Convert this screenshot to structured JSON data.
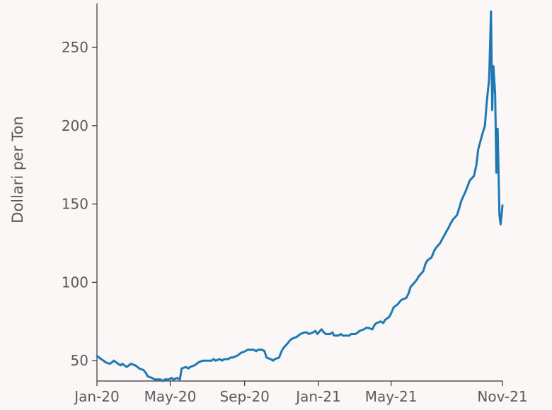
{
  "chart_data": {
    "type": "line",
    "title": "",
    "xlabel": "",
    "ylabel": "Dollari per Ton",
    "grid": false,
    "legend": "none",
    "colors": {
      "line": "#1f77b4",
      "background": "#fcf7f7",
      "axis": "#333333",
      "text": "#5a5a5a"
    },
    "xlim": [
      "2020-01-01",
      "2021-11-01"
    ],
    "ylim": [
      37,
      278
    ],
    "x_ticks": [
      {
        "value": "2020-01-01",
        "label": "Jan-20"
      },
      {
        "value": "2020-05-01",
        "label": "May-20"
      },
      {
        "value": "2020-09-01",
        "label": "Sep-20"
      },
      {
        "value": "2021-01-01",
        "label": "Jan-21"
      },
      {
        "value": "2021-05-01",
        "label": "May-21"
      },
      {
        "value": "2021-11-01",
        "label": "Nov-21"
      }
    ],
    "y_ticks": [
      {
        "value": 50,
        "label": "50"
      },
      {
        "value": 100,
        "label": "100"
      },
      {
        "value": 150,
        "label": "150"
      },
      {
        "value": 200,
        "label": "200"
      },
      {
        "value": 250,
        "label": "250"
      }
    ],
    "series": [
      {
        "x": [
          "2020-01-01",
          "2020-01-08",
          "2020-01-12",
          "2020-01-15",
          "2020-01-22",
          "2020-01-26",
          "2020-01-29",
          "2020-02-05",
          "2020-02-09",
          "2020-02-12",
          "2020-02-19",
          "2020-02-23",
          "2020-02-26",
          "2020-03-04",
          "2020-03-08",
          "2020-03-11",
          "2020-03-18",
          "2020-03-22",
          "2020-03-25",
          "2020-04-01",
          "2020-04-05",
          "2020-04-08",
          "2020-04-15",
          "2020-04-19",
          "2020-04-22",
          "2020-04-29",
          "2020-05-03",
          "2020-05-06",
          "2020-05-13",
          "2020-05-17",
          "2020-05-20",
          "2020-05-27",
          "2020-05-31",
          "2020-06-03",
          "2020-06-10",
          "2020-06-14",
          "2020-06-17",
          "2020-06-24",
          "2020-06-28",
          "2020-07-01",
          "2020-07-08",
          "2020-07-12",
          "2020-07-15",
          "2020-07-22",
          "2020-07-26",
          "2020-07-29",
          "2020-08-05",
          "2020-08-09",
          "2020-08-12",
          "2020-08-19",
          "2020-08-23",
          "2020-08-26",
          "2020-09-02",
          "2020-09-06",
          "2020-09-09",
          "2020-09-16",
          "2020-09-20",
          "2020-09-23",
          "2020-09-30",
          "2020-10-04",
          "2020-10-07",
          "2020-10-14",
          "2020-10-18",
          "2020-10-21",
          "2020-10-28",
          "2020-11-01",
          "2020-11-04",
          "2020-11-11",
          "2020-11-15",
          "2020-11-18",
          "2020-11-25",
          "2020-11-29",
          "2020-12-02",
          "2020-12-09",
          "2020-12-13",
          "2020-12-16",
          "2020-12-23",
          "2020-12-27",
          "2020-12-30",
          "2021-01-06",
          "2021-01-10",
          "2021-01-13",
          "2021-01-20",
          "2021-01-24",
          "2021-01-27",
          "2021-02-03",
          "2021-02-07",
          "2021-02-10",
          "2021-02-17",
          "2021-02-21",
          "2021-02-24",
          "2021-03-03",
          "2021-03-07",
          "2021-03-10",
          "2021-03-17",
          "2021-03-21",
          "2021-03-24",
          "2021-03-31",
          "2021-04-04",
          "2021-04-07",
          "2021-04-14",
          "2021-04-18",
          "2021-04-21",
          "2021-04-28",
          "2021-05-02",
          "2021-05-05",
          "2021-05-12",
          "2021-05-16",
          "2021-05-19",
          "2021-05-26",
          "2021-05-30",
          "2021-06-02",
          "2021-06-09",
          "2021-06-13",
          "2021-06-16",
          "2021-06-23",
          "2021-06-27",
          "2021-06-30",
          "2021-07-07",
          "2021-07-11",
          "2021-07-14",
          "2021-07-21",
          "2021-07-25",
          "2021-07-28",
          "2021-08-04",
          "2021-08-08",
          "2021-08-11",
          "2021-08-18",
          "2021-08-22",
          "2021-08-25",
          "2021-09-01",
          "2021-09-05",
          "2021-09-08",
          "2021-09-15",
          "2021-09-19",
          "2021-09-22",
          "2021-09-29",
          "2021-10-03",
          "2021-10-06",
          "2021-10-10",
          "2021-10-13",
          "2021-10-15",
          "2021-10-17",
          "2021-10-20",
          "2021-10-22",
          "2021-10-24",
          "2021-10-27",
          "2021-10-29",
          "2021-11-01"
        ],
        "values": [
          53,
          51,
          50,
          49,
          48,
          49,
          50,
          48,
          47,
          48,
          46,
          47,
          48,
          47,
          46,
          45,
          44,
          42,
          40,
          39,
          38,
          38,
          38,
          37,
          38,
          38,
          39,
          38,
          39,
          38,
          45,
          46,
          45,
          46,
          47,
          48,
          49,
          50,
          50,
          50,
          50,
          51,
          50,
          51,
          50,
          51,
          51,
          52,
          52,
          53,
          54,
          55,
          56,
          57,
          57,
          57,
          56,
          57,
          57,
          56,
          52,
          51,
          50,
          51,
          52,
          56,
          58,
          61,
          63,
          64,
          65,
          66,
          67,
          68,
          68,
          67,
          68,
          69,
          67,
          70,
          68,
          67,
          67,
          68,
          66,
          66,
          67,
          66,
          66,
          66,
          67,
          67,
          68,
          69,
          70,
          71,
          71,
          70,
          73,
          74,
          75,
          74,
          76,
          78,
          81,
          84,
          86,
          88,
          89,
          90,
          93,
          97,
          100,
          102,
          104,
          107,
          112,
          114,
          116,
          120,
          122,
          125,
          128,
          130,
          135,
          138,
          140,
          143,
          148,
          152,
          158,
          162,
          165,
          168,
          175,
          185,
          195,
          200,
          215,
          230,
          273,
          210,
          238,
          220,
          170,
          198,
          143,
          137,
          149
        ]
      }
    ]
  }
}
